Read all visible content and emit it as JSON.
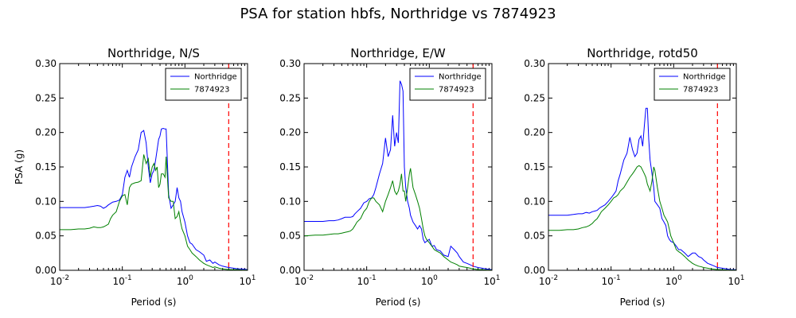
{
  "figure": {
    "title": "PSA for station hbfs, Northridge vs 7874923"
  },
  "colors": {
    "northridge": "#0000ff",
    "event": "#008000",
    "reference_line": "#ff0000"
  },
  "chart_data": [
    {
      "type": "line",
      "title": "Northridge, N/S",
      "xlabel": "Period (s)",
      "ylabel": "PSA (g)",
      "xscale": "log",
      "xlim": [
        0.01,
        10
      ],
      "ylim": [
        0,
        0.3
      ],
      "xticks": [
        0.01,
        0.1,
        1,
        10
      ],
      "xtick_labels": [
        "10-2",
        "10-1",
        "100",
        "101"
      ],
      "yticks": [
        "0.00",
        "0.05",
        "0.10",
        "0.15",
        "0.20",
        "0.25",
        "0.30"
      ],
      "legend_position": "top-right",
      "reference_line_x": 5,
      "series": [
        {
          "name": "Northridge",
          "x": [
            0.01,
            0.015,
            0.02,
            0.025,
            0.03,
            0.035,
            0.04,
            0.045,
            0.05,
            0.055,
            0.06,
            0.065,
            0.07,
            0.08,
            0.09,
            0.1,
            0.11,
            0.12,
            0.13,
            0.14,
            0.16,
            0.18,
            0.2,
            0.22,
            0.24,
            0.26,
            0.28,
            0.3,
            0.32,
            0.34,
            0.36,
            0.38,
            0.4,
            0.42,
            0.45,
            0.48,
            0.5,
            0.55,
            0.6,
            0.65,
            0.7,
            0.75,
            0.8,
            0.85,
            0.9,
            1.0,
            1.1,
            1.2,
            1.3,
            1.5,
            1.7,
            2.0,
            2.2,
            2.5,
            2.8,
            3.0,
            3.5,
            4.0,
            4.5,
            5.0,
            6.0,
            7.0,
            8.0,
            10.0
          ],
          "y": [
            0.091,
            0.091,
            0.091,
            0.091,
            0.092,
            0.093,
            0.094,
            0.093,
            0.09,
            0.092,
            0.095,
            0.097,
            0.099,
            0.1,
            0.102,
            0.11,
            0.135,
            0.145,
            0.135,
            0.15,
            0.165,
            0.175,
            0.2,
            0.203,
            0.185,
            0.15,
            0.127,
            0.14,
            0.145,
            0.16,
            0.175,
            0.19,
            0.195,
            0.205,
            0.206,
            0.205,
            0.205,
            0.11,
            0.09,
            0.095,
            0.1,
            0.12,
            0.105,
            0.1,
            0.085,
            0.07,
            0.05,
            0.04,
            0.038,
            0.03,
            0.027,
            0.022,
            0.013,
            0.015,
            0.01,
            0.012,
            0.008,
            0.006,
            0.005,
            0.004,
            0.003,
            0.002,
            0.002,
            0.001
          ]
        },
        {
          "name": "7874923",
          "x": [
            0.01,
            0.015,
            0.02,
            0.025,
            0.03,
            0.035,
            0.04,
            0.045,
            0.05,
            0.055,
            0.06,
            0.065,
            0.07,
            0.08,
            0.09,
            0.1,
            0.11,
            0.12,
            0.13,
            0.14,
            0.16,
            0.18,
            0.2,
            0.22,
            0.24,
            0.26,
            0.28,
            0.3,
            0.32,
            0.34,
            0.36,
            0.38,
            0.4,
            0.42,
            0.45,
            0.48,
            0.5,
            0.55,
            0.6,
            0.65,
            0.7,
            0.75,
            0.8,
            0.85,
            0.9,
            1.0,
            1.1,
            1.2,
            1.3,
            1.5,
            1.7,
            2.0,
            2.2,
            2.5,
            2.8,
            3.0,
            3.5,
            4.0,
            4.5,
            5.0,
            6.0,
            7.0,
            8.0,
            10.0
          ],
          "y": [
            0.059,
            0.059,
            0.06,
            0.06,
            0.061,
            0.063,
            0.062,
            0.062,
            0.063,
            0.065,
            0.067,
            0.075,
            0.08,
            0.085,
            0.1,
            0.108,
            0.11,
            0.095,
            0.12,
            0.125,
            0.127,
            0.128,
            0.13,
            0.168,
            0.155,
            0.162,
            0.135,
            0.15,
            0.155,
            0.145,
            0.15,
            0.12,
            0.125,
            0.14,
            0.14,
            0.135,
            0.165,
            0.105,
            0.1,
            0.1,
            0.075,
            0.078,
            0.085,
            0.07,
            0.06,
            0.05,
            0.035,
            0.03,
            0.025,
            0.02,
            0.015,
            0.01,
            0.008,
            0.006,
            0.004,
            0.005,
            0.003,
            0.002,
            0.0015,
            0.001,
            0.001,
            0.001,
            0.0005,
            0.0005
          ]
        }
      ]
    },
    {
      "type": "line",
      "title": "Northridge, E/W",
      "xlabel": "Period (s)",
      "ylabel": "",
      "xscale": "log",
      "xlim": [
        0.01,
        10
      ],
      "ylim": [
        0,
        0.3
      ],
      "xticks": [
        0.01,
        0.1,
        1,
        10
      ],
      "xtick_labels": [
        "10-2",
        "10-1",
        "100",
        "101"
      ],
      "yticks": [
        "0.00",
        "0.05",
        "0.10",
        "0.15",
        "0.20",
        "0.25",
        "0.30"
      ],
      "legend_position": "top-right",
      "reference_line_x": 5,
      "series": [
        {
          "name": "Northridge",
          "x": [
            0.01,
            0.015,
            0.02,
            0.025,
            0.03,
            0.035,
            0.04,
            0.045,
            0.05,
            0.055,
            0.06,
            0.065,
            0.07,
            0.08,
            0.09,
            0.1,
            0.11,
            0.12,
            0.13,
            0.14,
            0.16,
            0.18,
            0.2,
            0.22,
            0.24,
            0.26,
            0.28,
            0.3,
            0.32,
            0.34,
            0.36,
            0.38,
            0.4,
            0.42,
            0.45,
            0.48,
            0.5,
            0.55,
            0.6,
            0.65,
            0.7,
            0.75,
            0.8,
            0.85,
            0.9,
            1.0,
            1.1,
            1.2,
            1.3,
            1.5,
            1.7,
            2.0,
            2.2,
            2.5,
            2.8,
            3.0,
            3.5,
            4.0,
            4.5,
            5.0,
            6.0,
            7.0,
            8.0,
            10.0
          ],
          "y": [
            0.071,
            0.071,
            0.071,
            0.072,
            0.072,
            0.073,
            0.075,
            0.077,
            0.077,
            0.077,
            0.078,
            0.082,
            0.085,
            0.09,
            0.098,
            0.1,
            0.104,
            0.105,
            0.11,
            0.12,
            0.14,
            0.155,
            0.192,
            0.165,
            0.175,
            0.225,
            0.18,
            0.2,
            0.185,
            0.275,
            0.27,
            0.26,
            0.15,
            0.12,
            0.1,
            0.09,
            0.08,
            0.07,
            0.065,
            0.06,
            0.065,
            0.06,
            0.045,
            0.04,
            0.042,
            0.045,
            0.035,
            0.036,
            0.03,
            0.028,
            0.022,
            0.02,
            0.035,
            0.03,
            0.025,
            0.02,
            0.012,
            0.01,
            0.008,
            0.006,
            0.004,
            0.003,
            0.002,
            0.001
          ]
        },
        {
          "name": "7874923",
          "x": [
            0.01,
            0.015,
            0.02,
            0.025,
            0.03,
            0.035,
            0.04,
            0.045,
            0.05,
            0.055,
            0.06,
            0.065,
            0.07,
            0.08,
            0.09,
            0.1,
            0.11,
            0.12,
            0.13,
            0.14,
            0.16,
            0.18,
            0.2,
            0.22,
            0.24,
            0.26,
            0.28,
            0.3,
            0.32,
            0.34,
            0.36,
            0.38,
            0.4,
            0.42,
            0.45,
            0.48,
            0.5,
            0.55,
            0.6,
            0.65,
            0.7,
            0.75,
            0.8,
            0.85,
            0.9,
            1.0,
            1.1,
            1.2,
            1.3,
            1.5,
            1.7,
            2.0,
            2.2,
            2.5,
            2.8,
            3.0,
            3.5,
            4.0,
            4.5,
            5.0,
            6.0,
            7.0,
            8.0,
            10.0
          ],
          "y": [
            0.05,
            0.051,
            0.051,
            0.052,
            0.053,
            0.053,
            0.054,
            0.055,
            0.056,
            0.057,
            0.06,
            0.065,
            0.07,
            0.075,
            0.085,
            0.09,
            0.1,
            0.105,
            0.105,
            0.1,
            0.095,
            0.085,
            0.1,
            0.11,
            0.12,
            0.13,
            0.115,
            0.11,
            0.115,
            0.125,
            0.14,
            0.115,
            0.115,
            0.1,
            0.12,
            0.14,
            0.148,
            0.12,
            0.11,
            0.1,
            0.09,
            0.075,
            0.06,
            0.05,
            0.045,
            0.04,
            0.035,
            0.03,
            0.028,
            0.025,
            0.02,
            0.015,
            0.012,
            0.01,
            0.008,
            0.006,
            0.005,
            0.004,
            0.003,
            0.002,
            0.001,
            0.001,
            0.0005,
            0.0005
          ]
        }
      ]
    },
    {
      "type": "line",
      "title": "Northridge, rotd50",
      "xlabel": "Period (s)",
      "ylabel": "",
      "xscale": "log",
      "xlim": [
        0.01,
        10
      ],
      "ylim": [
        0,
        0.3
      ],
      "xticks": [
        0.01,
        0.1,
        1,
        10
      ],
      "xtick_labels": [
        "10-2",
        "10-1",
        "100",
        "101"
      ],
      "yticks": [
        "0.00",
        "0.05",
        "0.10",
        "0.15",
        "0.20",
        "0.25",
        "0.30"
      ],
      "legend_position": "top-right",
      "reference_line_x": 5,
      "series": [
        {
          "name": "Northridge",
          "x": [
            0.01,
            0.015,
            0.02,
            0.025,
            0.03,
            0.035,
            0.04,
            0.045,
            0.05,
            0.055,
            0.06,
            0.065,
            0.07,
            0.08,
            0.09,
            0.1,
            0.11,
            0.12,
            0.13,
            0.14,
            0.16,
            0.18,
            0.2,
            0.22,
            0.24,
            0.26,
            0.28,
            0.3,
            0.32,
            0.34,
            0.36,
            0.38,
            0.4,
            0.42,
            0.45,
            0.48,
            0.5,
            0.55,
            0.6,
            0.65,
            0.7,
            0.75,
            0.8,
            0.85,
            0.9,
            1.0,
            1.1,
            1.2,
            1.3,
            1.5,
            1.7,
            2.0,
            2.2,
            2.5,
            2.8,
            3.0,
            3.5,
            4.0,
            4.5,
            5.0,
            6.0,
            7.0,
            8.0,
            10.0
          ],
          "y": [
            0.08,
            0.08,
            0.08,
            0.081,
            0.082,
            0.082,
            0.084,
            0.083,
            0.085,
            0.086,
            0.087,
            0.09,
            0.092,
            0.095,
            0.1,
            0.105,
            0.11,
            0.115,
            0.13,
            0.14,
            0.16,
            0.17,
            0.193,
            0.175,
            0.165,
            0.17,
            0.19,
            0.195,
            0.18,
            0.21,
            0.235,
            0.235,
            0.19,
            0.16,
            0.14,
            0.12,
            0.1,
            0.095,
            0.09,
            0.075,
            0.07,
            0.065,
            0.05,
            0.045,
            0.042,
            0.04,
            0.035,
            0.03,
            0.03,
            0.025,
            0.02,
            0.025,
            0.025,
            0.02,
            0.018,
            0.015,
            0.01,
            0.008,
            0.006,
            0.004,
            0.003,
            0.002,
            0.001,
            0.001
          ]
        },
        {
          "name": "7874923",
          "x": [
            0.01,
            0.015,
            0.02,
            0.025,
            0.03,
            0.035,
            0.04,
            0.045,
            0.05,
            0.055,
            0.06,
            0.065,
            0.07,
            0.08,
            0.09,
            0.1,
            0.11,
            0.12,
            0.13,
            0.14,
            0.16,
            0.18,
            0.2,
            0.22,
            0.24,
            0.26,
            0.28,
            0.3,
            0.32,
            0.34,
            0.36,
            0.38,
            0.4,
            0.42,
            0.45,
            0.48,
            0.5,
            0.55,
            0.6,
            0.65,
            0.7,
            0.75,
            0.8,
            0.85,
            0.9,
            1.0,
            1.1,
            1.2,
            1.3,
            1.5,
            1.7,
            2.0,
            2.2,
            2.5,
            2.8,
            3.0,
            3.5,
            4.0,
            4.5,
            5.0,
            6.0,
            7.0,
            8.0,
            10.0
          ],
          "y": [
            0.058,
            0.058,
            0.059,
            0.059,
            0.06,
            0.062,
            0.063,
            0.065,
            0.068,
            0.072,
            0.075,
            0.08,
            0.085,
            0.09,
            0.095,
            0.1,
            0.105,
            0.107,
            0.11,
            0.115,
            0.12,
            0.128,
            0.135,
            0.14,
            0.145,
            0.15,
            0.152,
            0.15,
            0.145,
            0.14,
            0.135,
            0.125,
            0.12,
            0.115,
            0.13,
            0.15,
            0.145,
            0.12,
            0.1,
            0.09,
            0.08,
            0.075,
            0.07,
            0.06,
            0.05,
            0.04,
            0.03,
            0.027,
            0.025,
            0.02,
            0.015,
            0.01,
            0.008,
            0.006,
            0.005,
            0.004,
            0.003,
            0.002,
            0.0015,
            0.001,
            0.001,
            0.0005,
            0.0005,
            0.0005
          ]
        }
      ]
    }
  ]
}
